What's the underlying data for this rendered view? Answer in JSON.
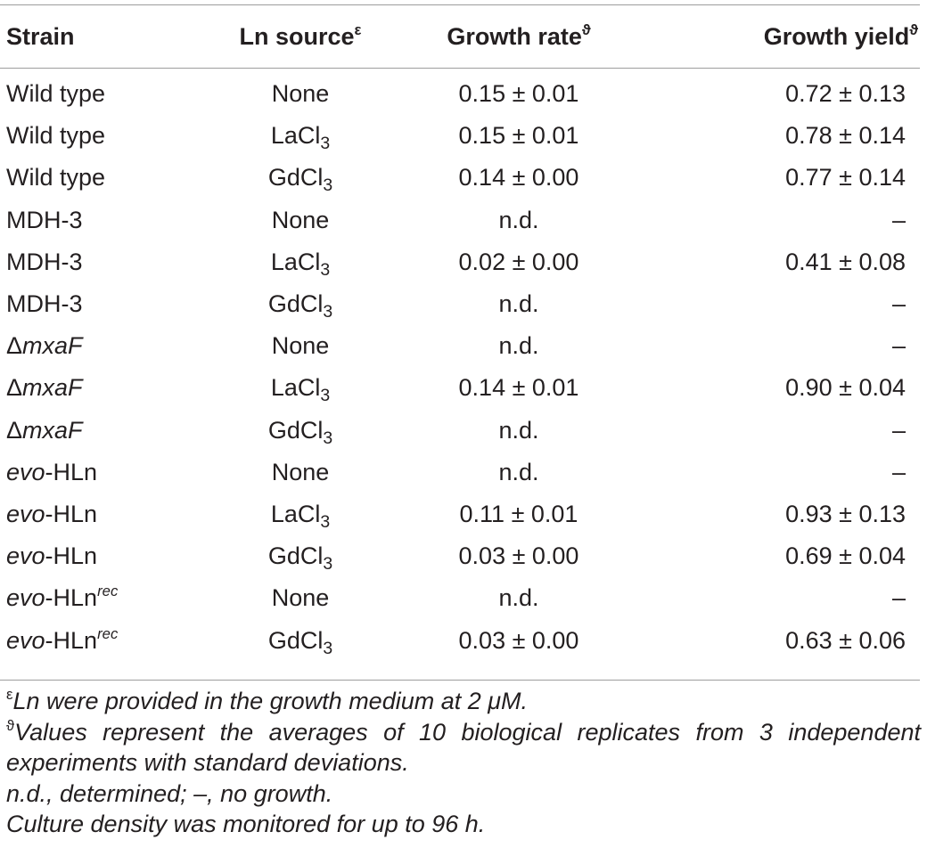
{
  "table": {
    "headers": {
      "strain": "Strain",
      "ln_source": "Ln source",
      "ln_source_mark": "ε",
      "growth_rate": "Growth rate",
      "growth_rate_mark": "ϑ",
      "growth_yield": "Growth yield",
      "growth_yield_mark": "ϑ"
    },
    "rows": [
      {
        "prefix": "",
        "name": "Wild type",
        "name_italic": "",
        "name_sup": "",
        "ln": "None",
        "ln_sub": "",
        "rate": "0.15 ± 0.01",
        "yield": "0.72 ± 0.13"
      },
      {
        "prefix": "",
        "name": "Wild type",
        "name_italic": "",
        "name_sup": "",
        "ln": "LaCl",
        "ln_sub": "3",
        "rate": "0.15 ± 0.01",
        "yield": "0.78 ± 0.14"
      },
      {
        "prefix": "",
        "name": "Wild type",
        "name_italic": "",
        "name_sup": "",
        "ln": "GdCl",
        "ln_sub": "3",
        "rate": "0.14 ± 0.00",
        "yield": "0.77 ± 0.14"
      },
      {
        "prefix": "",
        "name": "MDH-3",
        "name_italic": "",
        "name_sup": "",
        "ln": "None",
        "ln_sub": "",
        "rate": "n.d.",
        "yield": "–"
      },
      {
        "prefix": "",
        "name": "MDH-3",
        "name_italic": "",
        "name_sup": "",
        "ln": "LaCl",
        "ln_sub": "3",
        "rate": "0.02 ± 0.00",
        "yield": "0.41 ± 0.08"
      },
      {
        "prefix": "",
        "name": "MDH-3",
        "name_italic": "",
        "name_sup": "",
        "ln": "GdCl",
        "ln_sub": "3",
        "rate": "n.d.",
        "yield": "–"
      },
      {
        "prefix": "Δ",
        "name": "",
        "name_italic": "mxaF",
        "name_sup": "",
        "ln": "None",
        "ln_sub": "",
        "rate": "n.d.",
        "yield": "–"
      },
      {
        "prefix": "Δ",
        "name": "",
        "name_italic": "mxaF",
        "name_sup": "",
        "ln": "LaCl",
        "ln_sub": "3",
        "rate": "0.14 ± 0.01",
        "yield": "0.90 ± 0.04"
      },
      {
        "prefix": "Δ",
        "name": "",
        "name_italic": "mxaF",
        "name_sup": "",
        "ln": "GdCl",
        "ln_sub": "3",
        "rate": "n.d.",
        "yield": "–"
      },
      {
        "prefix": "evo",
        "name": "-HLn",
        "name_italic": "",
        "name_sup": "",
        "ln": "None",
        "ln_sub": "",
        "rate": "n.d.",
        "yield": "–"
      },
      {
        "prefix": "evo",
        "name": "-HLn",
        "name_italic": "",
        "name_sup": "",
        "ln": "LaCl",
        "ln_sub": "3",
        "rate": "0.11 ± 0.01",
        "yield": "0.93 ± 0.13"
      },
      {
        "prefix": "evo",
        "name": "-HLn",
        "name_italic": "",
        "name_sup": "",
        "ln": "GdCl",
        "ln_sub": "3",
        "rate": "0.03 ± 0.00",
        "yield": "0.69 ± 0.04"
      },
      {
        "prefix": "evo",
        "name": "-HLn",
        "name_italic": "",
        "name_sup": "rec",
        "ln": "None",
        "ln_sub": "",
        "rate": "n.d.",
        "yield": "–"
      },
      {
        "prefix": "evo",
        "name": "-HLn",
        "name_italic": "",
        "name_sup": "rec",
        "ln": "GdCl",
        "ln_sub": "3",
        "rate": "0.03 ± 0.00",
        "yield": "0.63 ± 0.06"
      }
    ]
  },
  "footnotes": {
    "note1_mark": "ε",
    "note1_text": "Ln were provided in the growth medium at 2 μM.",
    "note2_mark": "ϑ",
    "note2_text": "Values represent the averages of 10 biological replicates from 3 independent experiments with standard deviations.",
    "note3_text": "n.d., determined; –, no growth.",
    "note4_text": "Culture density was monitored for up to 96 h."
  }
}
